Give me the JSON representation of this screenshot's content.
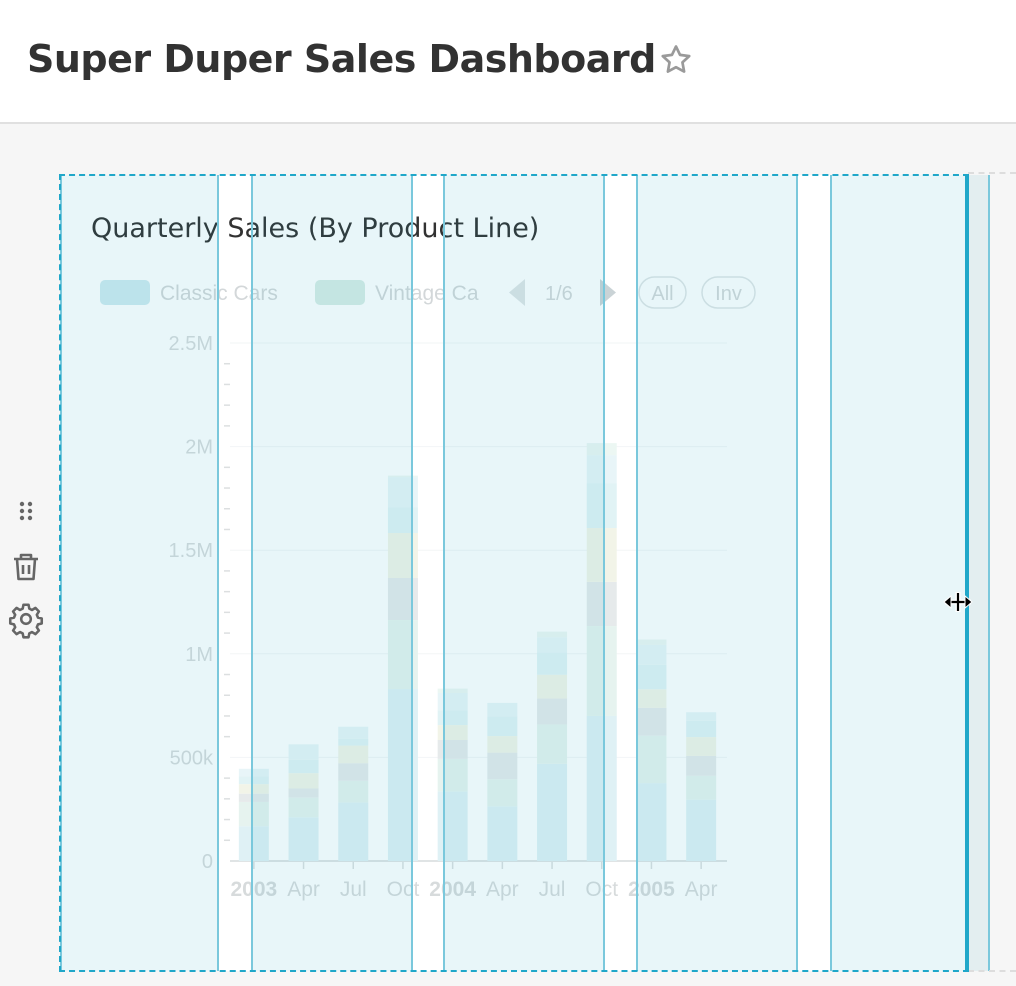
{
  "header": {
    "title": "Super Duper Sales Dashboard",
    "favorite_icon": "star-icon"
  },
  "side_tools": {
    "icons": [
      "drag-handle-icon",
      "trash-icon",
      "gear-icon"
    ]
  },
  "chart": {
    "title": "Quarterly Sales (By Product Line)",
    "legend": {
      "items": [
        {
          "label": "Classic Cars",
          "color": "#c6e6ed"
        },
        {
          "label": "Vintage Ca",
          "color": "#d2ebe2"
        }
      ],
      "page": "1/6",
      "all_label": "All",
      "inv_label": "Inv"
    }
  },
  "chart_data": {
    "type": "bar",
    "stacked": true,
    "title": "Quarterly Sales (By Product Line)",
    "categories": [
      "2003",
      "Apr",
      "Jul",
      "Oct",
      "2004",
      "Apr",
      "Jul",
      "Oct",
      "2005",
      "Apr"
    ],
    "bold_categories": [
      "2003",
      "2004",
      "2005"
    ],
    "y_ticks": [
      "0",
      "500k",
      "1M",
      "1.5M",
      "2M",
      "2.5M"
    ],
    "ylim": [
      0,
      2500000
    ],
    "grid": true,
    "legend_position": "top",
    "series": [
      {
        "name": "Classic Cars",
        "color": "#c6e6ed",
        "values": [
          168000,
          211000,
          283000,
          830000,
          336000,
          264000,
          469000,
          700000,
          376000,
          296000
        ]
      },
      {
        "name": "Vintage Cars",
        "color": "#d2ebe2",
        "values": [
          117000,
          96000,
          104000,
          333000,
          157000,
          131000,
          190000,
          434000,
          229000,
          115000
        ]
      },
      {
        "color": "#d2d9dc",
        "values": [
          40000,
          43000,
          85000,
          203000,
          91000,
          128000,
          125000,
          213000,
          134000,
          96000
        ]
      },
      {
        "color": "#e9ecd6",
        "values": [
          46000,
          74000,
          85000,
          217000,
          72000,
          80000,
          115000,
          260000,
          90000,
          91000
        ]
      },
      {
        "color": "#c9eaee",
        "values": [
          37000,
          64000,
          32000,
          125000,
          72000,
          96000,
          107000,
          217000,
          118000,
          79000
        ]
      },
      {
        "color": "#d7eef3",
        "values": [
          37000,
          75000,
          59000,
          145000,
          83000,
          64000,
          74000,
          135000,
          96000,
          41000
        ]
      },
      {
        "color": "#ddf1eb",
        "values": [
          0,
          0,
          0,
          7000,
          21000,
          0,
          27000,
          58000,
          26000,
          0
        ]
      }
    ]
  }
}
